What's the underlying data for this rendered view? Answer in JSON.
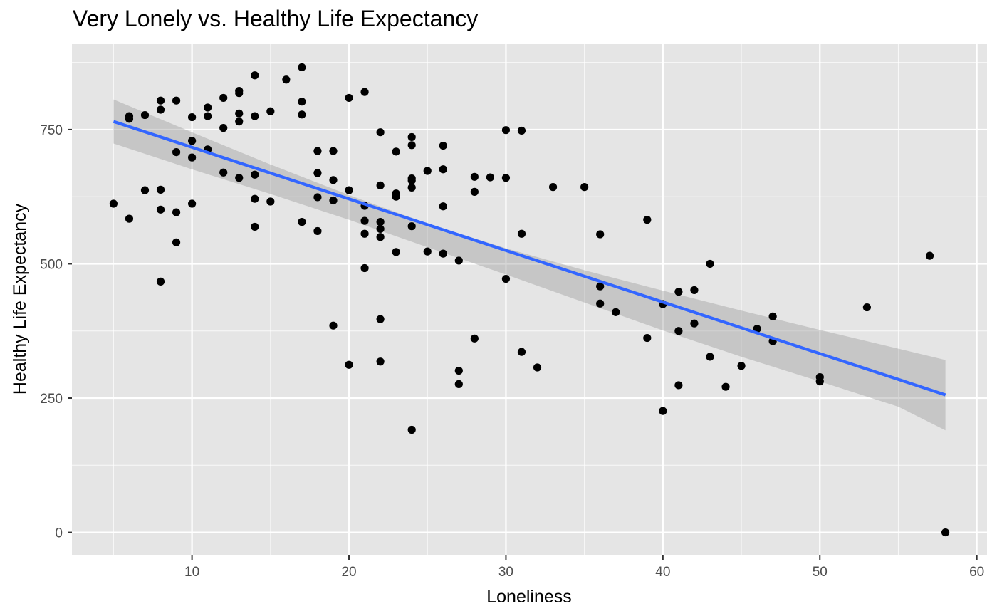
{
  "chart_data": {
    "type": "scatter",
    "title": "Very Lonely vs. Healthy Life Expectancy",
    "xlabel": "Loneliness",
    "ylabel": "Healthy Life Expectancy",
    "xlim": [
      2.35,
      60.65
    ],
    "ylim": [
      -43,
      909
    ],
    "x_ticks": [
      10,
      20,
      30,
      40,
      50,
      60
    ],
    "y_ticks": [
      0,
      250,
      500,
      750
    ],
    "grid": true,
    "colors": {
      "panel": "#e5e5e5",
      "grid": "#ffffff",
      "points": "#000000",
      "fit_line": "#3366ff",
      "confidence_band": "#999999"
    },
    "points": [
      {
        "x": 5,
        "y": 612
      },
      {
        "x": 6,
        "y": 775
      },
      {
        "x": 6,
        "y": 770
      },
      {
        "x": 6,
        "y": 584
      },
      {
        "x": 7,
        "y": 777
      },
      {
        "x": 7,
        "y": 637
      },
      {
        "x": 8,
        "y": 804
      },
      {
        "x": 8,
        "y": 787
      },
      {
        "x": 8,
        "y": 638
      },
      {
        "x": 8,
        "y": 601
      },
      {
        "x": 8,
        "y": 467
      },
      {
        "x": 9,
        "y": 804
      },
      {
        "x": 9,
        "y": 708
      },
      {
        "x": 9,
        "y": 596
      },
      {
        "x": 9,
        "y": 540
      },
      {
        "x": 10,
        "y": 773
      },
      {
        "x": 10,
        "y": 729
      },
      {
        "x": 10,
        "y": 698
      },
      {
        "x": 10,
        "y": 612
      },
      {
        "x": 11,
        "y": 791
      },
      {
        "x": 11,
        "y": 775
      },
      {
        "x": 11,
        "y": 713
      },
      {
        "x": 12,
        "y": 809
      },
      {
        "x": 12,
        "y": 753
      },
      {
        "x": 12,
        "y": 670
      },
      {
        "x": 13,
        "y": 822
      },
      {
        "x": 13,
        "y": 818
      },
      {
        "x": 13,
        "y": 780
      },
      {
        "x": 13,
        "y": 765
      },
      {
        "x": 13,
        "y": 660
      },
      {
        "x": 14,
        "y": 851
      },
      {
        "x": 14,
        "y": 775
      },
      {
        "x": 14,
        "y": 666
      },
      {
        "x": 14,
        "y": 621
      },
      {
        "x": 14,
        "y": 569
      },
      {
        "x": 15,
        "y": 784
      },
      {
        "x": 15,
        "y": 616
      },
      {
        "x": 16,
        "y": 843
      },
      {
        "x": 17,
        "y": 866
      },
      {
        "x": 17,
        "y": 802
      },
      {
        "x": 17,
        "y": 778
      },
      {
        "x": 17,
        "y": 578
      },
      {
        "x": 18,
        "y": 710
      },
      {
        "x": 18,
        "y": 669
      },
      {
        "x": 18,
        "y": 624
      },
      {
        "x": 18,
        "y": 561
      },
      {
        "x": 19,
        "y": 710
      },
      {
        "x": 19,
        "y": 656
      },
      {
        "x": 19,
        "y": 618
      },
      {
        "x": 19,
        "y": 385
      },
      {
        "x": 20,
        "y": 809
      },
      {
        "x": 20,
        "y": 637
      },
      {
        "x": 20,
        "y": 312
      },
      {
        "x": 21,
        "y": 820
      },
      {
        "x": 21,
        "y": 608
      },
      {
        "x": 21,
        "y": 580
      },
      {
        "x": 21,
        "y": 556
      },
      {
        "x": 21,
        "y": 492
      },
      {
        "x": 22,
        "y": 745
      },
      {
        "x": 22,
        "y": 646
      },
      {
        "x": 22,
        "y": 578
      },
      {
        "x": 22,
        "y": 565
      },
      {
        "x": 22,
        "y": 550
      },
      {
        "x": 22,
        "y": 397
      },
      {
        "x": 22,
        "y": 318
      },
      {
        "x": 23,
        "y": 709
      },
      {
        "x": 23,
        "y": 631
      },
      {
        "x": 23,
        "y": 625
      },
      {
        "x": 23,
        "y": 522
      },
      {
        "x": 24,
        "y": 736
      },
      {
        "x": 24,
        "y": 721
      },
      {
        "x": 24,
        "y": 659
      },
      {
        "x": 24,
        "y": 655
      },
      {
        "x": 24,
        "y": 642
      },
      {
        "x": 24,
        "y": 570
      },
      {
        "x": 24,
        "y": 191
      },
      {
        "x": 25,
        "y": 673
      },
      {
        "x": 25,
        "y": 523
      },
      {
        "x": 26,
        "y": 720
      },
      {
        "x": 26,
        "y": 676
      },
      {
        "x": 26,
        "y": 607
      },
      {
        "x": 26,
        "y": 519
      },
      {
        "x": 27,
        "y": 506
      },
      {
        "x": 27,
        "y": 301
      },
      {
        "x": 27,
        "y": 276
      },
      {
        "x": 28,
        "y": 662
      },
      {
        "x": 28,
        "y": 634
      },
      {
        "x": 28,
        "y": 361
      },
      {
        "x": 29,
        "y": 661
      },
      {
        "x": 30,
        "y": 749
      },
      {
        "x": 30,
        "y": 660
      },
      {
        "x": 30,
        "y": 472
      },
      {
        "x": 31,
        "y": 748
      },
      {
        "x": 31,
        "y": 556
      },
      {
        "x": 31,
        "y": 336
      },
      {
        "x": 32,
        "y": 307
      },
      {
        "x": 33,
        "y": 643
      },
      {
        "x": 35,
        "y": 643
      },
      {
        "x": 36,
        "y": 555
      },
      {
        "x": 36,
        "y": 458
      },
      {
        "x": 36,
        "y": 426
      },
      {
        "x": 37,
        "y": 410
      },
      {
        "x": 39,
        "y": 582
      },
      {
        "x": 39,
        "y": 362
      },
      {
        "x": 40,
        "y": 425
      },
      {
        "x": 40,
        "y": 226
      },
      {
        "x": 41,
        "y": 448
      },
      {
        "x": 41,
        "y": 375
      },
      {
        "x": 41,
        "y": 274
      },
      {
        "x": 42,
        "y": 451
      },
      {
        "x": 42,
        "y": 389
      },
      {
        "x": 43,
        "y": 500
      },
      {
        "x": 43,
        "y": 327
      },
      {
        "x": 44,
        "y": 271
      },
      {
        "x": 45,
        "y": 310
      },
      {
        "x": 46,
        "y": 379
      },
      {
        "x": 47,
        "y": 402
      },
      {
        "x": 47,
        "y": 356
      },
      {
        "x": 50,
        "y": 289
      },
      {
        "x": 50,
        "y": 281
      },
      {
        "x": 53,
        "y": 419
      },
      {
        "x": 57,
        "y": 515
      },
      {
        "x": 58,
        "y": 0
      }
    ],
    "fit_line": {
      "x": [
        5,
        58
      ],
      "y": [
        765,
        256
      ]
    },
    "confidence_band": {
      "x": [
        5,
        10,
        15,
        20,
        25,
        30,
        35,
        40,
        45,
        50,
        55,
        58
      ],
      "upper": [
        806,
        745,
        685,
        628,
        575,
        529,
        488,
        450,
        413,
        377,
        342,
        321
      ],
      "lower": [
        724,
        676,
        630,
        582,
        531,
        480,
        428,
        376,
        327,
        281,
        234,
        190
      ]
    }
  }
}
